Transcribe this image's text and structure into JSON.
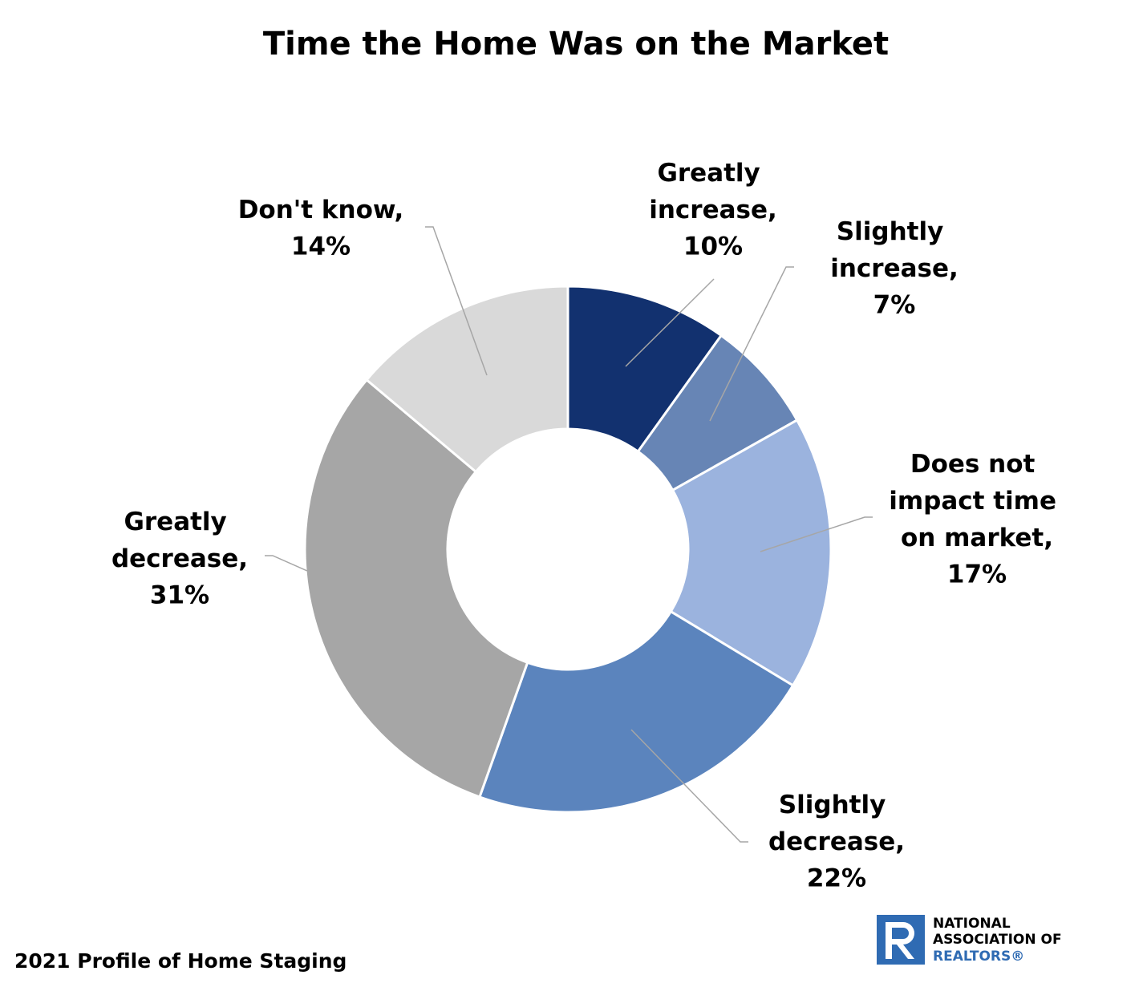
{
  "chart_data": {
    "type": "donut",
    "title": "Time the Home Was on the Market",
    "categories": [
      "Greatly increase,",
      "Slightly increase,",
      "Does not impact time on market,",
      "Slightly decrease,",
      "Greatly decrease,",
      "Don't know,"
    ],
    "values": [
      10,
      7,
      17,
      22,
      31,
      14
    ],
    "value_labels": [
      "10%",
      "7%",
      "17%",
      "22%",
      "31%",
      "14%"
    ],
    "colors": [
      "#12316f",
      "#6785b5",
      "#9bb3de",
      "#5b84bd",
      "#a6a6a6",
      "#d9d9d9"
    ]
  },
  "footer": {
    "source": "2021 Profile of Home Staging",
    "logo": [
      "NATIONAL",
      "ASSOCIATION OF",
      "REALTORS®"
    ]
  }
}
